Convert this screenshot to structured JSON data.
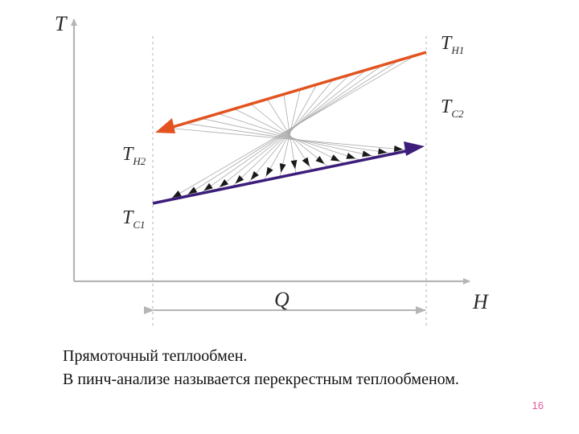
{
  "diagram": {
    "axis_y_label": "T",
    "axis_x_label": "H",
    "q_label": "Q",
    "hot_start_label": {
      "main": "T",
      "sub": "H1"
    },
    "cold_end_label": {
      "main": "T",
      "sub": "C2"
    },
    "hot_end_label": {
      "main": "T",
      "sub": "H2"
    },
    "cold_start_label": {
      "main": "T",
      "sub": "C1"
    },
    "colors": {
      "hot_stream": "#e2531f",
      "cold_stream": "#3c1e7a",
      "axes": "#b5b5b5",
      "guides": "#b0b0b0",
      "exchange_lines": "#a9a9a9",
      "arrowheads": "#1a1a1a"
    }
  },
  "caption": {
    "line1": "Прямоточный теплообмен.",
    "line2": "В пинч-анализе называется перекрестным теплообменом."
  },
  "page_number": "16"
}
